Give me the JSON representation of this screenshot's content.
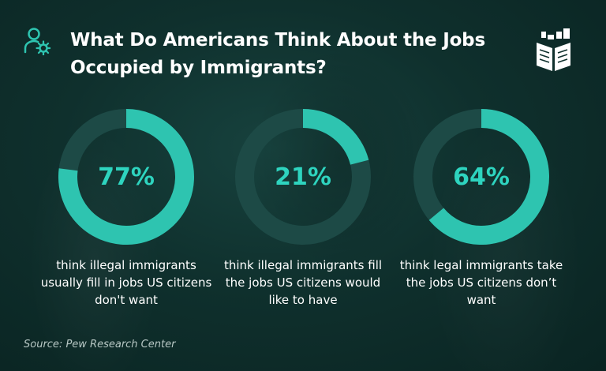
{
  "title": "What Do Americans Think About the Jobs Occupied by Immigrants?",
  "source": "Source: Pew Research Center",
  "colors": {
    "accent": "#2ec4b0",
    "track": "#1d4a46",
    "text": "#ffffff",
    "pct_text": "#2ed4bf"
  },
  "icons": {
    "header": "person-gear-icon",
    "logo": "book-castle-logo-icon"
  },
  "chart_data": [
    {
      "type": "pie",
      "value": 77,
      "label": "77%",
      "caption": "think illegal immigrants usually fill in jobs US citizens don't want"
    },
    {
      "type": "pie",
      "value": 21,
      "label": "21%",
      "caption": "think illegal immigrants fill the jobs US citizens would like to have"
    },
    {
      "type": "pie",
      "value": 64,
      "label": "64%",
      "caption": "think legal immigrants take the jobs US citizens don’t want"
    }
  ]
}
